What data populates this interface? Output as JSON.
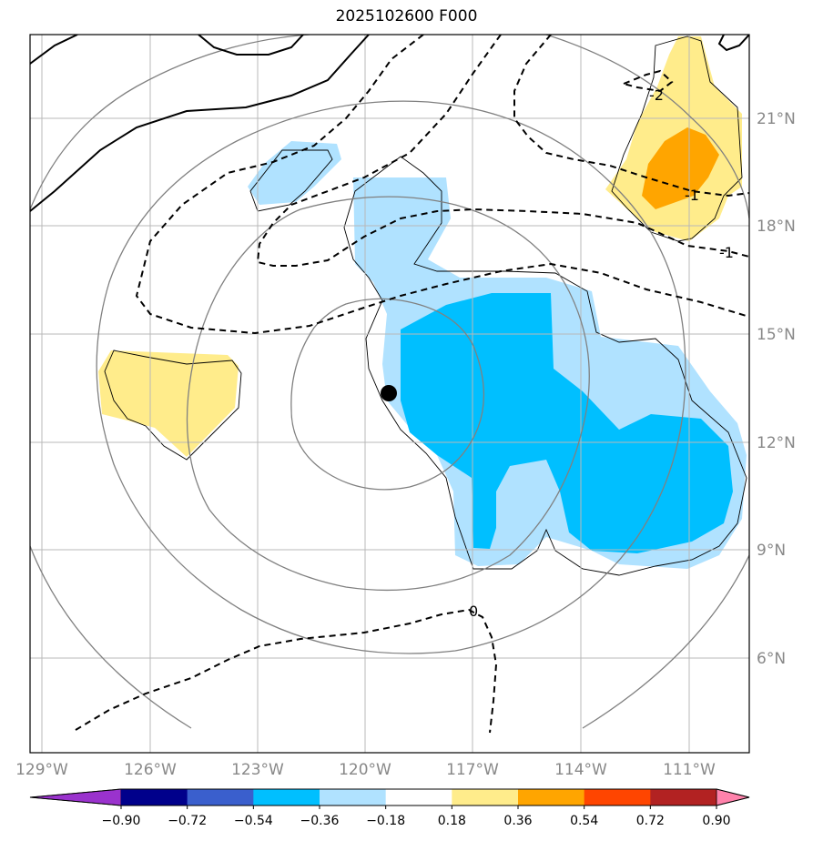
{
  "title": "2025102600 F000",
  "map": {
    "lon_ticks": [
      "129°W",
      "126°W",
      "123°W",
      "120°W",
      "117°W",
      "114°W",
      "111°W"
    ],
    "lat_ticks": [
      "21°N",
      "18°N",
      "15°N",
      "12°N",
      "9°N",
      "6°N"
    ],
    "contour_labels": [
      "-2",
      "-1",
      "0",
      "-1"
    ],
    "center_marker": {
      "lon": -119.3,
      "lat": 13.3
    }
  },
  "colorbar": {
    "levels": [
      "−0.90",
      "−0.72",
      "−0.54",
      "−0.36",
      "−0.18",
      "0.18",
      "0.36",
      "0.54",
      "0.72",
      "0.90"
    ],
    "colors": [
      "#9a32cd",
      "#00008b",
      "#3a5fcd",
      "#00bfff",
      "#b0e2ff",
      "#ffffff",
      "#ffec8b",
      "#ffa500",
      "#ff4500",
      "#b22222",
      "#ff82ab"
    ]
  },
  "colors": {
    "light_blue": "#b0e2ff",
    "deep_sky_blue": "#00bfff",
    "light_yellow": "#ffec8b",
    "orange": "#ffa500",
    "grid": "#b0b0b0",
    "circle": "#808080"
  }
}
